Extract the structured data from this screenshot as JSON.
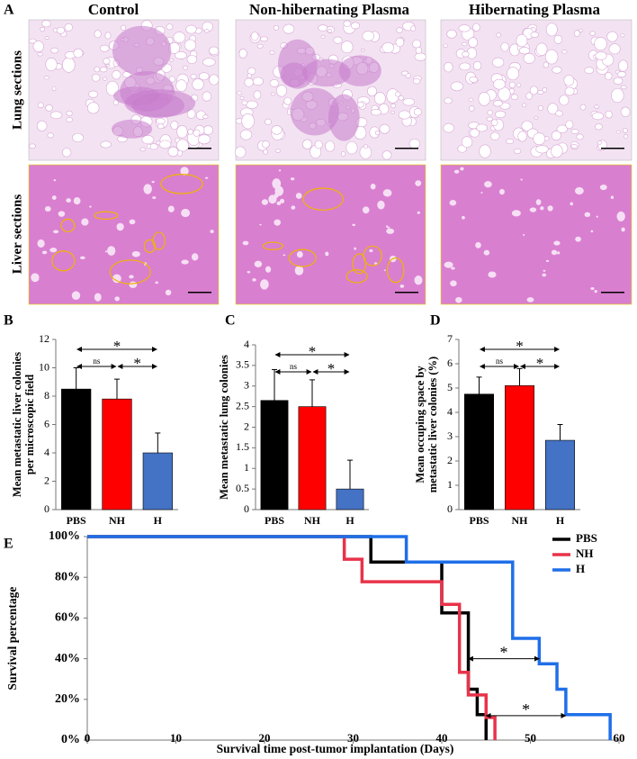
{
  "figure": {
    "panel": "A",
    "columns": [
      "Control",
      "Non-hibernating Plasma",
      "Hibernating Plasma"
    ],
    "rows": [
      "Lung sections",
      "Liver sections"
    ]
  },
  "chart_data": [
    {
      "type": "bar",
      "panel": "B",
      "ylabel": [
        "Mean metastatic liver colonies",
        "per microscopic field"
      ],
      "categories": [
        "PBS",
        "NH",
        "H"
      ],
      "values": [
        8.5,
        7.8,
        4
      ],
      "errors": [
        1.5,
        1.4,
        1.4
      ],
      "colors": [
        "#000000",
        "#ff0000",
        "#4472c4"
      ],
      "ylim": [
        0,
        12
      ],
      "yticks": [
        0,
        2,
        4,
        6,
        8,
        10,
        12
      ],
      "significance": [
        {
          "between": [
            "PBS",
            "H"
          ],
          "label": "*"
        },
        {
          "between": [
            "PBS",
            "NH"
          ],
          "label": "ns"
        },
        {
          "between": [
            "NH",
            "H"
          ],
          "label": "*"
        }
      ]
    },
    {
      "type": "bar",
      "panel": "C",
      "ylabel": [
        "Mean metastatic lung colonies"
      ],
      "categories": [
        "PBS",
        "NH",
        "H"
      ],
      "values": [
        2.65,
        2.5,
        0.5
      ],
      "errors": [
        0.75,
        0.65,
        0.7
      ],
      "colors": [
        "#000000",
        "#ff0000",
        "#4472c4"
      ],
      "ylim": [
        0,
        4
      ],
      "yticks": [
        0,
        0.5,
        1,
        1.5,
        2,
        2.5,
        3,
        3.5,
        4
      ],
      "significance": [
        {
          "between": [
            "PBS",
            "H"
          ],
          "label": "*"
        },
        {
          "between": [
            "PBS",
            "NH"
          ],
          "label": "ns"
        },
        {
          "between": [
            "NH",
            "H"
          ],
          "label": "*"
        }
      ]
    },
    {
      "type": "bar",
      "panel": "D",
      "ylabel": [
        "Mean occuping space by",
        "metastatic liver colonies (%)"
      ],
      "categories": [
        "PBS",
        "NH",
        "H"
      ],
      "values": [
        4.75,
        5.1,
        2.85
      ],
      "errors": [
        0.7,
        0.7,
        0.65
      ],
      "colors": [
        "#000000",
        "#ff0000",
        "#4472c4"
      ],
      "ylim": [
        0,
        7
      ],
      "yticks": [
        0,
        1,
        2,
        3,
        4,
        5,
        6,
        7
      ],
      "significance": [
        {
          "between": [
            "PBS",
            "H"
          ],
          "label": "*"
        },
        {
          "between": [
            "PBS",
            "NH"
          ],
          "label": "ns"
        },
        {
          "between": [
            "NH",
            "H"
          ],
          "label": "*"
        }
      ]
    },
    {
      "type": "step",
      "panel": "E",
      "xlabel": "Survival time post-tumor implantation (Days)",
      "ylabel": "Survival percentage",
      "xlim": [
        0,
        60
      ],
      "xticks": [
        0,
        10,
        20,
        30,
        40,
        50,
        60
      ],
      "ylim": [
        0,
        100
      ],
      "yticks": [
        {
          "value": 0,
          "label": "0%"
        },
        {
          "value": 20,
          "label": "20%"
        },
        {
          "value": 40,
          "label": "40%"
        },
        {
          "value": 60,
          "label": "60%"
        },
        {
          "value": 80,
          "label": "80%"
        },
        {
          "value": 100,
          "label": "100%"
        }
      ],
      "legend": "upper right",
      "series": [
        {
          "name": "PBS",
          "color": "#000000",
          "x": [
            0,
            32,
            40,
            43,
            44,
            45
          ],
          "values": [
            100,
            87.5,
            62.5,
            25,
            12.5,
            0
          ]
        },
        {
          "name": "NH",
          "color": "#e8334a",
          "x": [
            0,
            29,
            31,
            40,
            42,
            43,
            45,
            46
          ],
          "values": [
            100,
            88.9,
            77.8,
            66.7,
            33.3,
            22.2,
            11.1,
            0
          ]
        },
        {
          "name": "H",
          "color": "#1f6fe8",
          "x": [
            0,
            36,
            48,
            51,
            53,
            54,
            59
          ],
          "values": [
            100,
            87.5,
            50,
            37.5,
            25,
            12.5,
            0
          ]
        }
      ],
      "annotations": [
        {
          "label": "*",
          "between": [
            43,
            51
          ],
          "at": 40
        },
        {
          "label": "*",
          "between": [
            45,
            54
          ],
          "at": 12
        }
      ]
    }
  ]
}
